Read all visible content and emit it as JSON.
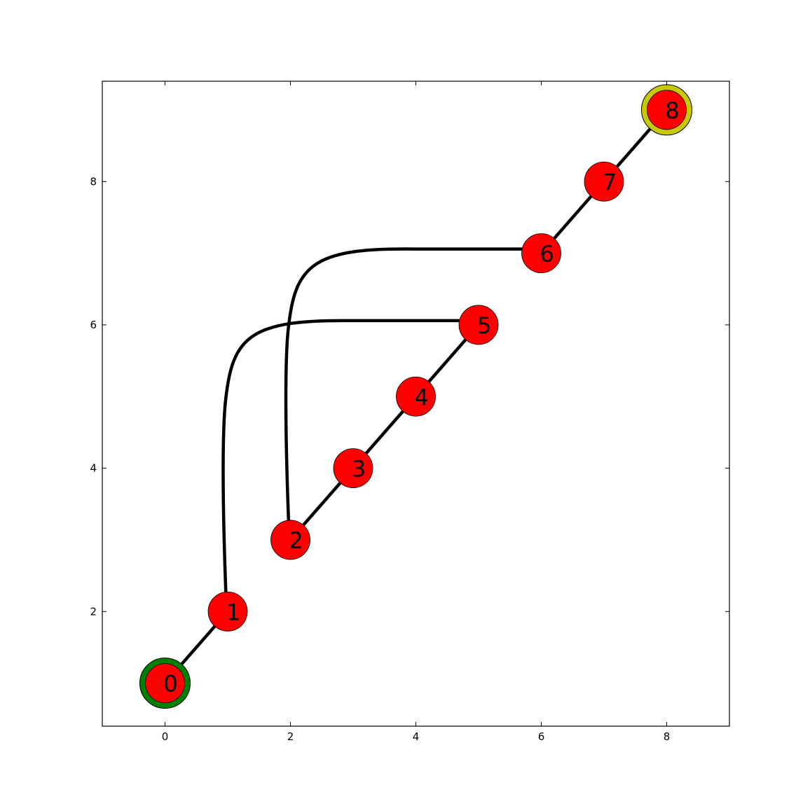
{
  "chart_data": {
    "type": "scatter",
    "title": "",
    "xlabel": "",
    "ylabel": "",
    "xlim": [
      -1,
      9
    ],
    "ylim": [
      0.4,
      9.4
    ],
    "xticks": [
      0,
      2,
      4,
      6,
      8
    ],
    "yticks": [
      2,
      4,
      6,
      8
    ],
    "grid": false,
    "nodes": [
      {
        "label": "0",
        "x": 0,
        "y": 1,
        "fill": "#ff0000",
        "ring": "#008000"
      },
      {
        "label": "1",
        "x": 1,
        "y": 2,
        "fill": "#ff0000",
        "ring": ""
      },
      {
        "label": "2",
        "x": 2,
        "y": 3,
        "fill": "#ff0000",
        "ring": ""
      },
      {
        "label": "3",
        "x": 3,
        "y": 4,
        "fill": "#ff0000",
        "ring": ""
      },
      {
        "label": "4",
        "x": 4,
        "y": 5,
        "fill": "#ff0000",
        "ring": ""
      },
      {
        "label": "5",
        "x": 5,
        "y": 6,
        "fill": "#ff0000",
        "ring": ""
      },
      {
        "label": "6",
        "x": 6,
        "y": 7,
        "fill": "#ff0000",
        "ring": ""
      },
      {
        "label": "7",
        "x": 7,
        "y": 8,
        "fill": "#ff0000",
        "ring": ""
      },
      {
        "label": "8",
        "x": 8,
        "y": 9,
        "fill": "#ff0000",
        "ring": "#c8c800"
      }
    ],
    "edges": [
      {
        "from": 0,
        "to": 1,
        "curved": false
      },
      {
        "from": 1,
        "to": 5,
        "curved": true
      },
      {
        "from": 5,
        "to": 4,
        "curved": false
      },
      {
        "from": 4,
        "to": 3,
        "curved": false
      },
      {
        "from": 3,
        "to": 2,
        "curved": false
      },
      {
        "from": 2,
        "to": 6,
        "curved": true
      },
      {
        "from": 6,
        "to": 7,
        "curved": false
      },
      {
        "from": 7,
        "to": 8,
        "curved": false
      }
    ]
  }
}
